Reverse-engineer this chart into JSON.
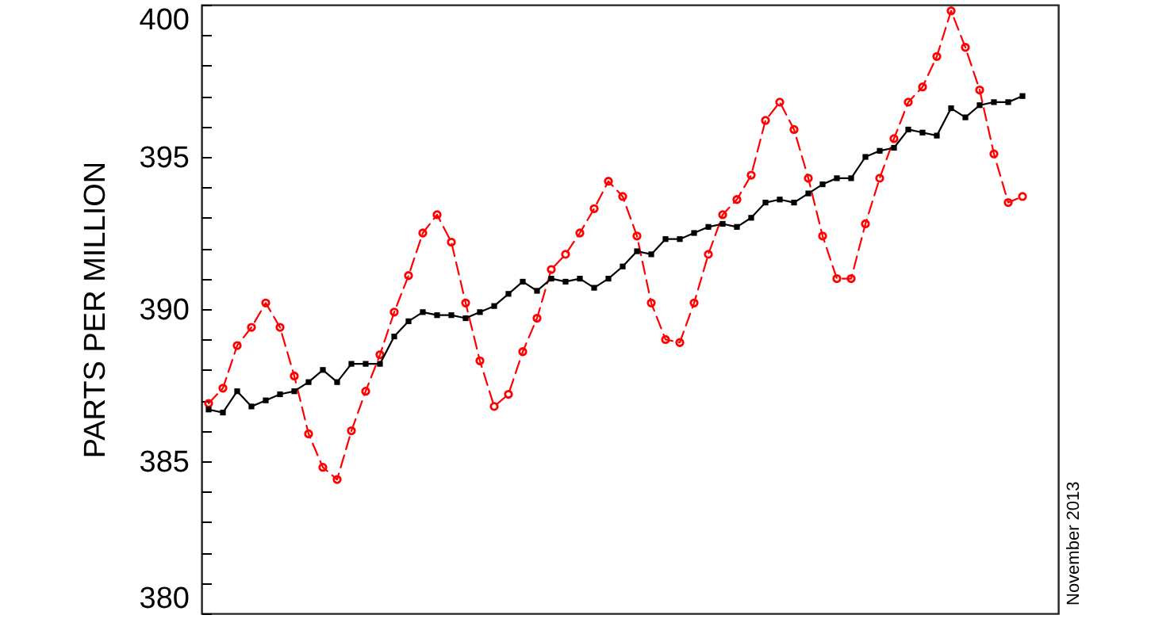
{
  "chart_data": {
    "type": "line",
    "ylabel": "PARTS PER MILLION",
    "annotations": [
      "November 2013"
    ],
    "categories": [
      null,
      null,
      null,
      null,
      null,
      null,
      null,
      null,
      null,
      null,
      null,
      null,
      null,
      null,
      null,
      null,
      null,
      null,
      null,
      null,
      null,
      null,
      null,
      null,
      null,
      null,
      null,
      null,
      null,
      null,
      null,
      null,
      null,
      null,
      null,
      null,
      null,
      null,
      null,
      null,
      null,
      null,
      null,
      null,
      null,
      null,
      null,
      null,
      null,
      null,
      null,
      null,
      null,
      null,
      null,
      null,
      null,
      null,
      null,
      null
    ],
    "ylim": [
      380,
      400
    ],
    "yticks": [
      380,
      {
        "value": 381,
        "label": null
      },
      {
        "value": 382,
        "label": null
      },
      {
        "value": 383,
        "label": null
      },
      {
        "value": 384,
        "label": null
      },
      385,
      {
        "value": 386,
        "label": null
      },
      {
        "value": 387,
        "label": null
      },
      {
        "value": 388,
        "label": null
      },
      {
        "value": 389,
        "label": null
      },
      390,
      {
        "value": 391,
        "label": null
      },
      {
        "value": 392,
        "label": null
      },
      {
        "value": 393,
        "label": null
      },
      {
        "value": 394,
        "label": null
      },
      395,
      {
        "value": 396,
        "label": null
      },
      {
        "value": 397,
        "label": null
      },
      {
        "value": 398,
        "label": null
      },
      {
        "value": 399,
        "label": null
      },
      400
    ],
    "series": [
      {
        "color": "#ff0000",
        "marker": "circle",
        "line_style": "dashed",
        "values": [
          386.9,
          387.4,
          388.8,
          389.4,
          390.2,
          389.4,
          387.8,
          385.9,
          384.8,
          384.4,
          386.0,
          387.3,
          388.5,
          389.9,
          391.1,
          392.5,
          393.1,
          392.2,
          390.2,
          388.3,
          386.8,
          387.2,
          388.6,
          389.7,
          391.3,
          391.8,
          392.5,
          393.3,
          394.2,
          393.7,
          392.4,
          390.2,
          389.0,
          388.9,
          390.2,
          391.8,
          393.1,
          393.6,
          394.4,
          396.2,
          396.8,
          395.9,
          394.3,
          392.4,
          391.0,
          391.0,
          392.8,
          394.3,
          395.6,
          396.8,
          397.3,
          398.3,
          399.8,
          398.6,
          397.2,
          395.1,
          393.5,
          393.7,
          null,
          null
        ]
      },
      {
        "color": "#000000",
        "marker": "square",
        "line_style": "solid",
        "values": [
          386.7,
          386.6,
          387.3,
          386.8,
          387.0,
          387.2,
          387.3,
          387.6,
          388.0,
          387.6,
          388.2,
          388.2,
          388.2,
          389.1,
          389.6,
          389.9,
          389.8,
          389.8,
          389.7,
          389.9,
          390.1,
          390.5,
          390.9,
          390.6,
          391.0,
          390.9,
          391.0,
          390.7,
          391.0,
          391.4,
          391.9,
          391.8,
          392.3,
          392.3,
          392.5,
          392.7,
          392.8,
          392.7,
          393.0,
          393.5,
          393.6,
          393.5,
          393.8,
          394.1,
          394.3,
          394.3,
          395.0,
          395.2,
          395.3,
          395.9,
          395.8,
          395.7,
          396.6,
          396.3,
          396.7,
          396.8,
          396.8,
          397.0,
          null,
          null
        ]
      }
    ]
  }
}
